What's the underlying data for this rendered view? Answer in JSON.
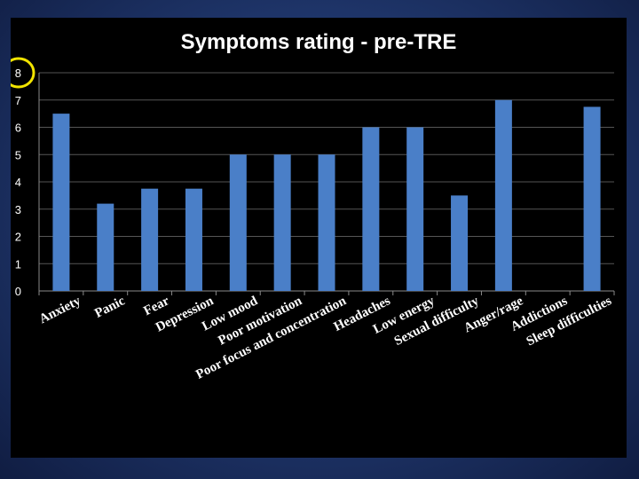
{
  "chart_data": {
    "type": "bar",
    "title": "Symptoms rating - pre-TRE",
    "xlabel": "",
    "ylabel": "",
    "ylim": [
      0,
      8
    ],
    "yticks": [
      "0",
      "1",
      "2",
      "3",
      "4",
      "5",
      "6",
      "7",
      "8"
    ],
    "grid": true,
    "categories": [
      "Anxiety",
      "Panic",
      "Fear",
      "Depression",
      "Low mood",
      "Poor motivation",
      "Poor focus and concentration",
      "Headaches",
      "Low energy",
      "Sexual difficulty",
      "Anger/rage",
      "Addictions",
      "Sleep difficulties"
    ],
    "values": [
      6.5,
      3.2,
      3.75,
      3.75,
      5,
      5,
      5,
      6,
      6,
      3.5,
      7,
      0,
      6.75
    ],
    "highlighted_tick": "8",
    "colors": {
      "bar": "#4a7fc8",
      "grid": "#555555",
      "axis": "#8a8a8a",
      "highlight": "#f2e400",
      "text": "#ffffff",
      "plot_bg": "#000000"
    }
  }
}
